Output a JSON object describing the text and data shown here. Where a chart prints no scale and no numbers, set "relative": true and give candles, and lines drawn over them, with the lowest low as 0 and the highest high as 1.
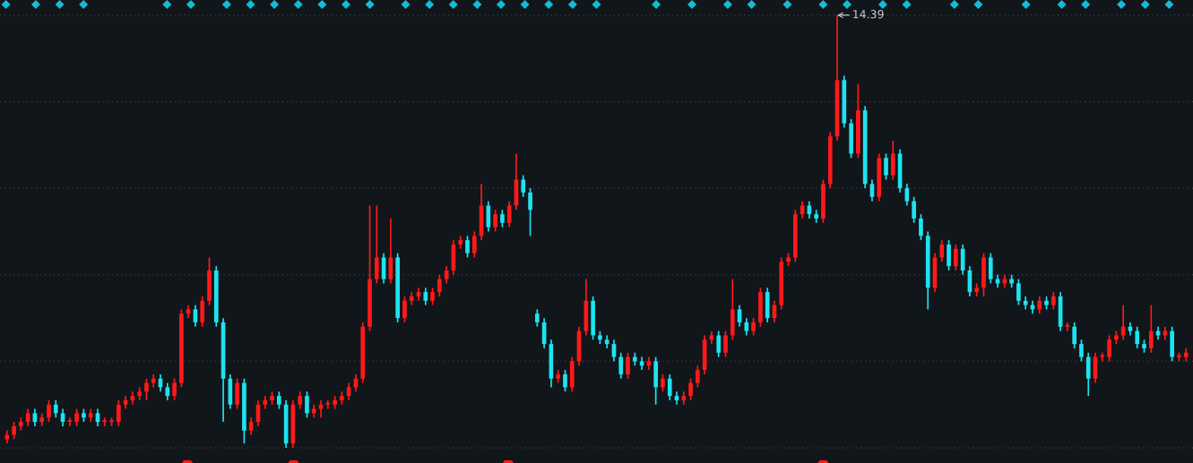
{
  "chart_data": {
    "type": "candlestick",
    "relative": true,
    "grid": "y",
    "colors": [
      "#ff1a1a",
      "#ff1a1a",
      "#ff1a1a",
      "#ff1a1a",
      "#1ee3f0",
      "#ff1a1a",
      "#ff1a1a",
      "#1ee3f0",
      "#1ee3f0",
      "#ff1a1a",
      "#ff1a1a",
      "#1ee3f0",
      "#ff1a1a",
      "#1ee3f0",
      "#ff1a1a",
      "#ff1a1a",
      "#ff1a1a",
      "#ff1a1a",
      "#ff1a1a",
      "#ff1a1a",
      "#ff1a1a",
      "#ff1a1a",
      "#1ee3f0",
      "#1ee3f0",
      "#ff1a1a",
      "#ff1a1a",
      "#ff1a1a",
      "#1ee3f0",
      "#ff1a1a",
      "#ff1a1a",
      "#1ee3f0",
      "#1ee3f0",
      "#1ee3f0",
      "#ff1a1a",
      "#1ee3f0",
      "#ff1a1a",
      "#ff1a1a",
      "#ff1a1a",
      "#ff1a1a",
      "#1ee3f0",
      "#1ee3f0",
      "#ff1a1a",
      "#ff1a1a",
      "#1ee3f0",
      "#ff1a1a",
      "#ff1a1a",
      "#ff1a1a",
      "#ff1a1a",
      "#ff1a1a",
      "#ff1a1a",
      "#ff1a1a",
      "#ff1a1a",
      "#ff1a1a",
      "#ff1a1a",
      "#1ee3f0",
      "#ff1a1a",
      "#1ee3f0",
      "#ff1a1a",
      "#ff1a1a",
      "#ff1a1a",
      "#1ee3f0",
      "#ff1a1a",
      "#ff1a1a",
      "#ff1a1a",
      "#ff1a1a",
      "#ff1a1a",
      "#1ee3f0",
      "#ff1a1a",
      "#ff1a1a",
      "#1ee3f0",
      "#ff1a1a",
      "#1ee3f0",
      "#ff1a1a",
      "#ff1a1a",
      "#1ee3f0",
      "#1ee3f0",
      "#1ee3f0",
      "#1ee3f0",
      "#1ee3f0",
      "#ff1a1a",
      "#1ee3f0",
      "#ff1a1a",
      "#ff1a1a",
      "#ff1a1a",
      "#1ee3f0",
      "#1ee3f0",
      "#1ee3f0",
      "#1ee3f0",
      "#1ee3f0",
      "#ff1a1a",
      "#1ee3f0",
      "#1ee3f0",
      "#ff1a1a",
      "#1ee3f0",
      "#ff1a1a",
      "#1ee3f0",
      "#1ee3f0",
      "#ff1a1a",
      "#ff1a1a",
      "#ff1a1a",
      "#ff1a1a",
      "#ff1a1a",
      "#1ee3f0",
      "#ff1a1a",
      "#ff1a1a",
      "#1ee3f0",
      "#1ee3f0",
      "#ff1a1a",
      "#ff1a1a",
      "#1ee3f0",
      "#ff1a1a",
      "#ff1a1a",
      "#ff1a1a",
      "#ff1a1a",
      "#ff1a1a",
      "#1ee3f0",
      "#1ee3f0",
      "#ff1a1a",
      "#ff1a1a",
      "#ff1a1a",
      "#1ee3f0",
      "#1ee3f0",
      "#ff1a1a",
      "#1ee3f0",
      "#1ee3f0",
      "#ff1a1a",
      "#1ee3f0",
      "#ff1a1a",
      "#1ee3f0",
      "#1ee3f0",
      "#1ee3f0",
      "#1ee3f0",
      "#1ee3f0",
      "#ff1a1a",
      "#ff1a1a",
      "#1ee3f0",
      "#ff1a1a",
      "#1ee3f0",
      "#1ee3f0",
      "#ff1a1a",
      "#ff1a1a",
      "#1ee3f0",
      "#1ee3f0",
      "#ff1a1a",
      "#1ee3f0",
      "#1ee3f0",
      "#1ee3f0",
      "#1ee3f0",
      "#ff1a1a",
      "#1ee3f0",
      "#ff1a1a",
      "#1ee3f0",
      "#ff1a1a",
      "#1ee3f0",
      "#1ee3f0",
      "#1ee3f0",
      "#ff1a1a",
      "#ff1a1a",
      "#ff1a1a",
      "#ff1a1a",
      "#ff1a1a",
      "#1ee3f0",
      "#1ee3f0",
      "#1ee3f0",
      "#ff1a1a",
      "#1ee3f0",
      "#ff1a1a",
      "#1ee3f0",
      "#ff1a1a",
      "#ff1a1a"
    ],
    "annotations": [
      "14.39"
    ],
    "categories": [
      null,
      null,
      null,
      null,
      null,
      null,
      null,
      null,
      null,
      null,
      null,
      null,
      null,
      null,
      null,
      null,
      null,
      null,
      null,
      null,
      null,
      null,
      null,
      null,
      null,
      null,
      null,
      null,
      null,
      null,
      null,
      null,
      null,
      null,
      null,
      null,
      null,
      null,
      null,
      null,
      null,
      null,
      null,
      null,
      null,
      null,
      null,
      null,
      null,
      null,
      null,
      null,
      null,
      null,
      null,
      null,
      null,
      null,
      null,
      null,
      null,
      null,
      null,
      null,
      null,
      null,
      null,
      null,
      null,
      null,
      null,
      null,
      null,
      null,
      null,
      null,
      null,
      null,
      null,
      null,
      null,
      null,
      null,
      null,
      null,
      null,
      null,
      null,
      null,
      null,
      null,
      null,
      null,
      null,
      null,
      null,
      null,
      null,
      null,
      null,
      null,
      null,
      null,
      null,
      null,
      null,
      null,
      null,
      null,
      null,
      null,
      null,
      null,
      null,
      null,
      null,
      null,
      null,
      null,
      null,
      null,
      null,
      null,
      null,
      null,
      null,
      null,
      null,
      null,
      null,
      null,
      null,
      null,
      null,
      null,
      null,
      null,
      null,
      null,
      null,
      null,
      null,
      null,
      null,
      null,
      null,
      null,
      null,
      null,
      null,
      null,
      null,
      null,
      null,
      null,
      null,
      null,
      null,
      null,
      null,
      null,
      null,
      null,
      null,
      null,
      null,
      null,
      null,
      null,
      null
    ],
    "ohlc": [
      [
        0.02,
        0.04,
        0.01,
        0.03
      ],
      [
        0.03,
        0.06,
        0.02,
        0.05
      ],
      [
        0.05,
        0.07,
        0.04,
        0.06
      ],
      [
        0.06,
        0.09,
        0.05,
        0.08
      ],
      [
        0.08,
        0.09,
        0.05,
        0.06
      ],
      [
        0.06,
        0.08,
        0.05,
        0.07
      ],
      [
        0.07,
        0.11,
        0.06,
        0.1
      ],
      [
        0.1,
        0.11,
        0.07,
        0.08
      ],
      [
        0.08,
        0.09,
        0.05,
        0.06
      ],
      [
        0.06,
        0.07,
        0.05,
        0.06
      ],
      [
        0.06,
        0.09,
        0.05,
        0.08
      ],
      [
        0.08,
        0.09,
        0.06,
        0.07
      ],
      [
        0.07,
        0.09,
        0.06,
        0.08
      ],
      [
        0.08,
        0.09,
        0.05,
        0.06
      ],
      [
        0.06,
        0.07,
        0.05,
        0.06
      ],
      [
        0.06,
        0.07,
        0.05,
        0.06
      ],
      [
        0.06,
        0.11,
        0.05,
        0.1
      ],
      [
        0.1,
        0.12,
        0.09,
        0.11
      ],
      [
        0.11,
        0.13,
        0.1,
        0.12
      ],
      [
        0.12,
        0.14,
        0.11,
        0.13
      ],
      [
        0.13,
        0.16,
        0.11,
        0.15
      ],
      [
        0.15,
        0.17,
        0.14,
        0.16
      ],
      [
        0.16,
        0.17,
        0.13,
        0.14
      ],
      [
        0.14,
        0.15,
        0.11,
        0.12
      ],
      [
        0.12,
        0.16,
        0.11,
        0.15
      ],
      [
        0.15,
        0.32,
        0.14,
        0.31
      ],
      [
        0.31,
        0.33,
        0.3,
        0.32
      ],
      [
        0.32,
        0.33,
        0.28,
        0.29
      ],
      [
        0.29,
        0.35,
        0.28,
        0.34
      ],
      [
        0.34,
        0.44,
        0.33,
        0.41
      ],
      [
        0.41,
        0.42,
        0.28,
        0.29
      ],
      [
        0.29,
        0.3,
        0.06,
        0.16
      ],
      [
        0.16,
        0.17,
        0.09,
        0.1
      ],
      [
        0.1,
        0.16,
        0.09,
        0.15
      ],
      [
        0.15,
        0.16,
        0.01,
        0.04
      ],
      [
        0.04,
        0.07,
        0.03,
        0.06
      ],
      [
        0.06,
        0.11,
        0.05,
        0.1
      ],
      [
        0.1,
        0.12,
        0.09,
        0.11
      ],
      [
        0.11,
        0.13,
        0.1,
        0.12
      ],
      [
        0.12,
        0.13,
        0.09,
        0.1
      ],
      [
        0.1,
        0.11,
        0,
        0.01
      ],
      [
        0.01,
        0.11,
        0,
        0.1
      ],
      [
        0.1,
        0.13,
        0.09,
        0.12
      ],
      [
        0.12,
        0.13,
        0.07,
        0.08
      ],
      [
        0.08,
        0.1,
        0.07,
        0.09
      ],
      [
        0.09,
        0.11,
        0.07,
        0.1
      ],
      [
        0.1,
        0.11,
        0.09,
        0.1
      ],
      [
        0.1,
        0.12,
        0.09,
        0.11
      ],
      [
        0.11,
        0.13,
        0.1,
        0.12
      ],
      [
        0.12,
        0.15,
        0.11,
        0.14
      ],
      [
        0.14,
        0.17,
        0.13,
        0.16
      ],
      [
        0.16,
        0.29,
        0.15,
        0.28
      ],
      [
        0.28,
        0.56,
        0.27,
        0.39
      ],
      [
        0.39,
        0.56,
        0.38,
        0.44
      ],
      [
        0.44,
        0.45,
        0.38,
        0.39
      ],
      [
        0.39,
        0.53,
        0.38,
        0.44
      ],
      [
        0.44,
        0.45,
        0.29,
        0.3
      ],
      [
        0.3,
        0.35,
        0.29,
        0.34
      ],
      [
        0.34,
        0.36,
        0.33,
        0.35
      ],
      [
        0.35,
        0.37,
        0.34,
        0.36
      ],
      [
        0.36,
        0.37,
        0.33,
        0.34
      ],
      [
        0.34,
        0.37,
        0.33,
        0.36
      ],
      [
        0.36,
        0.4,
        0.35,
        0.39
      ],
      [
        0.39,
        0.42,
        0.38,
        0.41
      ],
      [
        0.41,
        0.48,
        0.4,
        0.47
      ],
      [
        0.47,
        0.49,
        0.46,
        0.48
      ],
      [
        0.48,
        0.49,
        0.44,
        0.45
      ],
      [
        0.45,
        0.5,
        0.44,
        0.49
      ],
      [
        0.49,
        0.61,
        0.48,
        0.56
      ],
      [
        0.56,
        0.57,
        0.5,
        0.51
      ],
      [
        0.51,
        0.55,
        0.5,
        0.54
      ],
      [
        0.54,
        0.55,
        0.51,
        0.52
      ],
      [
        0.52,
        0.57,
        0.51,
        0.56
      ],
      [
        0.56,
        0.68,
        0.55,
        0.62
      ],
      [
        0.62,
        0.63,
        0.58,
        0.59
      ],
      [
        0.59,
        0.6,
        0.49,
        0.55
      ],
      [
        0.31,
        0.32,
        0.28,
        0.29
      ],
      [
        0.29,
        0.3,
        0.23,
        0.24
      ],
      [
        0.24,
        0.25,
        0.14,
        0.16
      ],
      [
        0.16,
        0.18,
        0.15,
        0.17
      ],
      [
        0.17,
        0.18,
        0.13,
        0.14
      ],
      [
        0.14,
        0.21,
        0.13,
        0.2
      ],
      [
        0.2,
        0.28,
        0.19,
        0.27
      ],
      [
        0.27,
        0.39,
        0.26,
        0.34
      ],
      [
        0.34,
        0.35,
        0.25,
        0.26
      ],
      [
        0.26,
        0.27,
        0.24,
        0.25
      ],
      [
        0.25,
        0.26,
        0.23,
        0.24
      ],
      [
        0.24,
        0.25,
        0.2,
        0.21
      ],
      [
        0.21,
        0.22,
        0.16,
        0.17
      ],
      [
        0.17,
        0.22,
        0.16,
        0.21
      ],
      [
        0.21,
        0.22,
        0.19,
        0.2
      ],
      [
        0.2,
        0.21,
        0.18,
        0.19
      ],
      [
        0.19,
        0.21,
        0.18,
        0.2
      ],
      [
        0.2,
        0.21,
        0.1,
        0.14
      ],
      [
        0.14,
        0.17,
        0.13,
        0.16
      ],
      [
        0.16,
        0.17,
        0.11,
        0.12
      ],
      [
        0.12,
        0.13,
        0.1,
        0.11
      ],
      [
        0.11,
        0.13,
        0.1,
        0.12
      ],
      [
        0.12,
        0.16,
        0.11,
        0.15
      ],
      [
        0.15,
        0.19,
        0.14,
        0.18
      ],
      [
        0.18,
        0.26,
        0.17,
        0.25
      ],
      [
        0.25,
        0.27,
        0.24,
        0.26
      ],
      [
        0.26,
        0.27,
        0.21,
        0.22
      ],
      [
        0.22,
        0.27,
        0.21,
        0.26
      ],
      [
        0.26,
        0.39,
        0.25,
        0.32
      ],
      [
        0.32,
        0.33,
        0.28,
        0.29
      ],
      [
        0.29,
        0.3,
        0.26,
        0.27
      ],
      [
        0.27,
        0.3,
        0.26,
        0.29
      ],
      [
        0.29,
        0.37,
        0.28,
        0.36
      ],
      [
        0.36,
        0.37,
        0.29,
        0.3
      ],
      [
        0.3,
        0.34,
        0.29,
        0.33
      ],
      [
        0.33,
        0.44,
        0.32,
        0.43
      ],
      [
        0.43,
        0.45,
        0.42,
        0.44
      ],
      [
        0.44,
        0.55,
        0.43,
        0.54
      ],
      [
        0.54,
        0.57,
        0.53,
        0.56
      ],
      [
        0.56,
        0.57,
        0.53,
        0.54
      ],
      [
        0.54,
        0.55,
        0.52,
        0.53
      ],
      [
        0.53,
        0.62,
        0.52,
        0.61
      ],
      [
        0.61,
        0.73,
        0.6,
        0.72
      ],
      [
        0.72,
        1.0,
        0.71,
        0.85
      ],
      [
        0.85,
        0.86,
        0.74,
        0.75
      ],
      [
        0.75,
        0.76,
        0.67,
        0.68
      ],
      [
        0.68,
        0.84,
        0.67,
        0.78
      ],
      [
        0.78,
        0.79,
        0.6,
        0.61
      ],
      [
        0.61,
        0.62,
        0.57,
        0.58
      ],
      [
        0.58,
        0.68,
        0.57,
        0.67
      ],
      [
        0.67,
        0.68,
        0.62,
        0.63
      ],
      [
        0.63,
        0.71,
        0.62,
        0.68
      ],
      [
        0.68,
        0.69,
        0.59,
        0.6
      ],
      [
        0.6,
        0.61,
        0.56,
        0.57
      ],
      [
        0.57,
        0.58,
        0.52,
        0.53
      ],
      [
        0.53,
        0.54,
        0.48,
        0.49
      ],
      [
        0.49,
        0.5,
        0.32,
        0.37
      ],
      [
        0.37,
        0.45,
        0.36,
        0.44
      ],
      [
        0.44,
        0.48,
        0.43,
        0.47
      ],
      [
        0.47,
        0.48,
        0.41,
        0.42
      ],
      [
        0.42,
        0.47,
        0.41,
        0.46
      ],
      [
        0.46,
        0.47,
        0.4,
        0.41
      ],
      [
        0.41,
        0.42,
        0.35,
        0.36
      ],
      [
        0.36,
        0.38,
        0.35,
        0.37
      ],
      [
        0.37,
        0.45,
        0.35,
        0.44
      ],
      [
        0.44,
        0.45,
        0.38,
        0.39
      ],
      [
        0.39,
        0.4,
        0.37,
        0.38
      ],
      [
        0.38,
        0.4,
        0.37,
        0.39
      ],
      [
        0.39,
        0.4,
        0.37,
        0.38
      ],
      [
        0.38,
        0.39,
        0.33,
        0.34
      ],
      [
        0.34,
        0.35,
        0.32,
        0.33
      ],
      [
        0.33,
        0.34,
        0.31,
        0.32
      ],
      [
        0.32,
        0.35,
        0.31,
        0.34
      ],
      [
        0.34,
        0.35,
        0.32,
        0.33
      ],
      [
        0.33,
        0.36,
        0.32,
        0.35
      ],
      [
        0.35,
        0.36,
        0.27,
        0.28
      ],
      [
        0.28,
        0.29,
        0.27,
        0.28
      ],
      [
        0.28,
        0.29,
        0.23,
        0.24
      ],
      [
        0.24,
        0.25,
        0.2,
        0.21
      ],
      [
        0.21,
        0.22,
        0.12,
        0.16
      ],
      [
        0.16,
        0.22,
        0.15,
        0.21
      ],
      [
        0.21,
        0.22,
        0.2,
        0.21
      ],
      [
        0.21,
        0.26,
        0.2,
        0.25
      ],
      [
        0.25,
        0.27,
        0.24,
        0.26
      ],
      [
        0.26,
        0.33,
        0.25,
        0.28
      ],
      [
        0.28,
        0.29,
        0.26,
        0.27
      ],
      [
        0.27,
        0.28,
        0.23,
        0.24
      ],
      [
        0.24,
        0.25,
        0.22,
        0.23
      ],
      [
        0.23,
        0.33,
        0.22,
        0.27
      ],
      [
        0.27,
        0.28,
        0.25,
        0.26
      ],
      [
        0.26,
        0.28,
        0.25,
        0.27
      ],
      [
        0.27,
        0.28,
        0.2,
        0.21
      ],
      [
        0.21,
        0.22,
        0.2,
        0.21
      ],
      [
        0.21,
        0.23,
        0.2,
        0.22
      ]
    ]
  }
}
